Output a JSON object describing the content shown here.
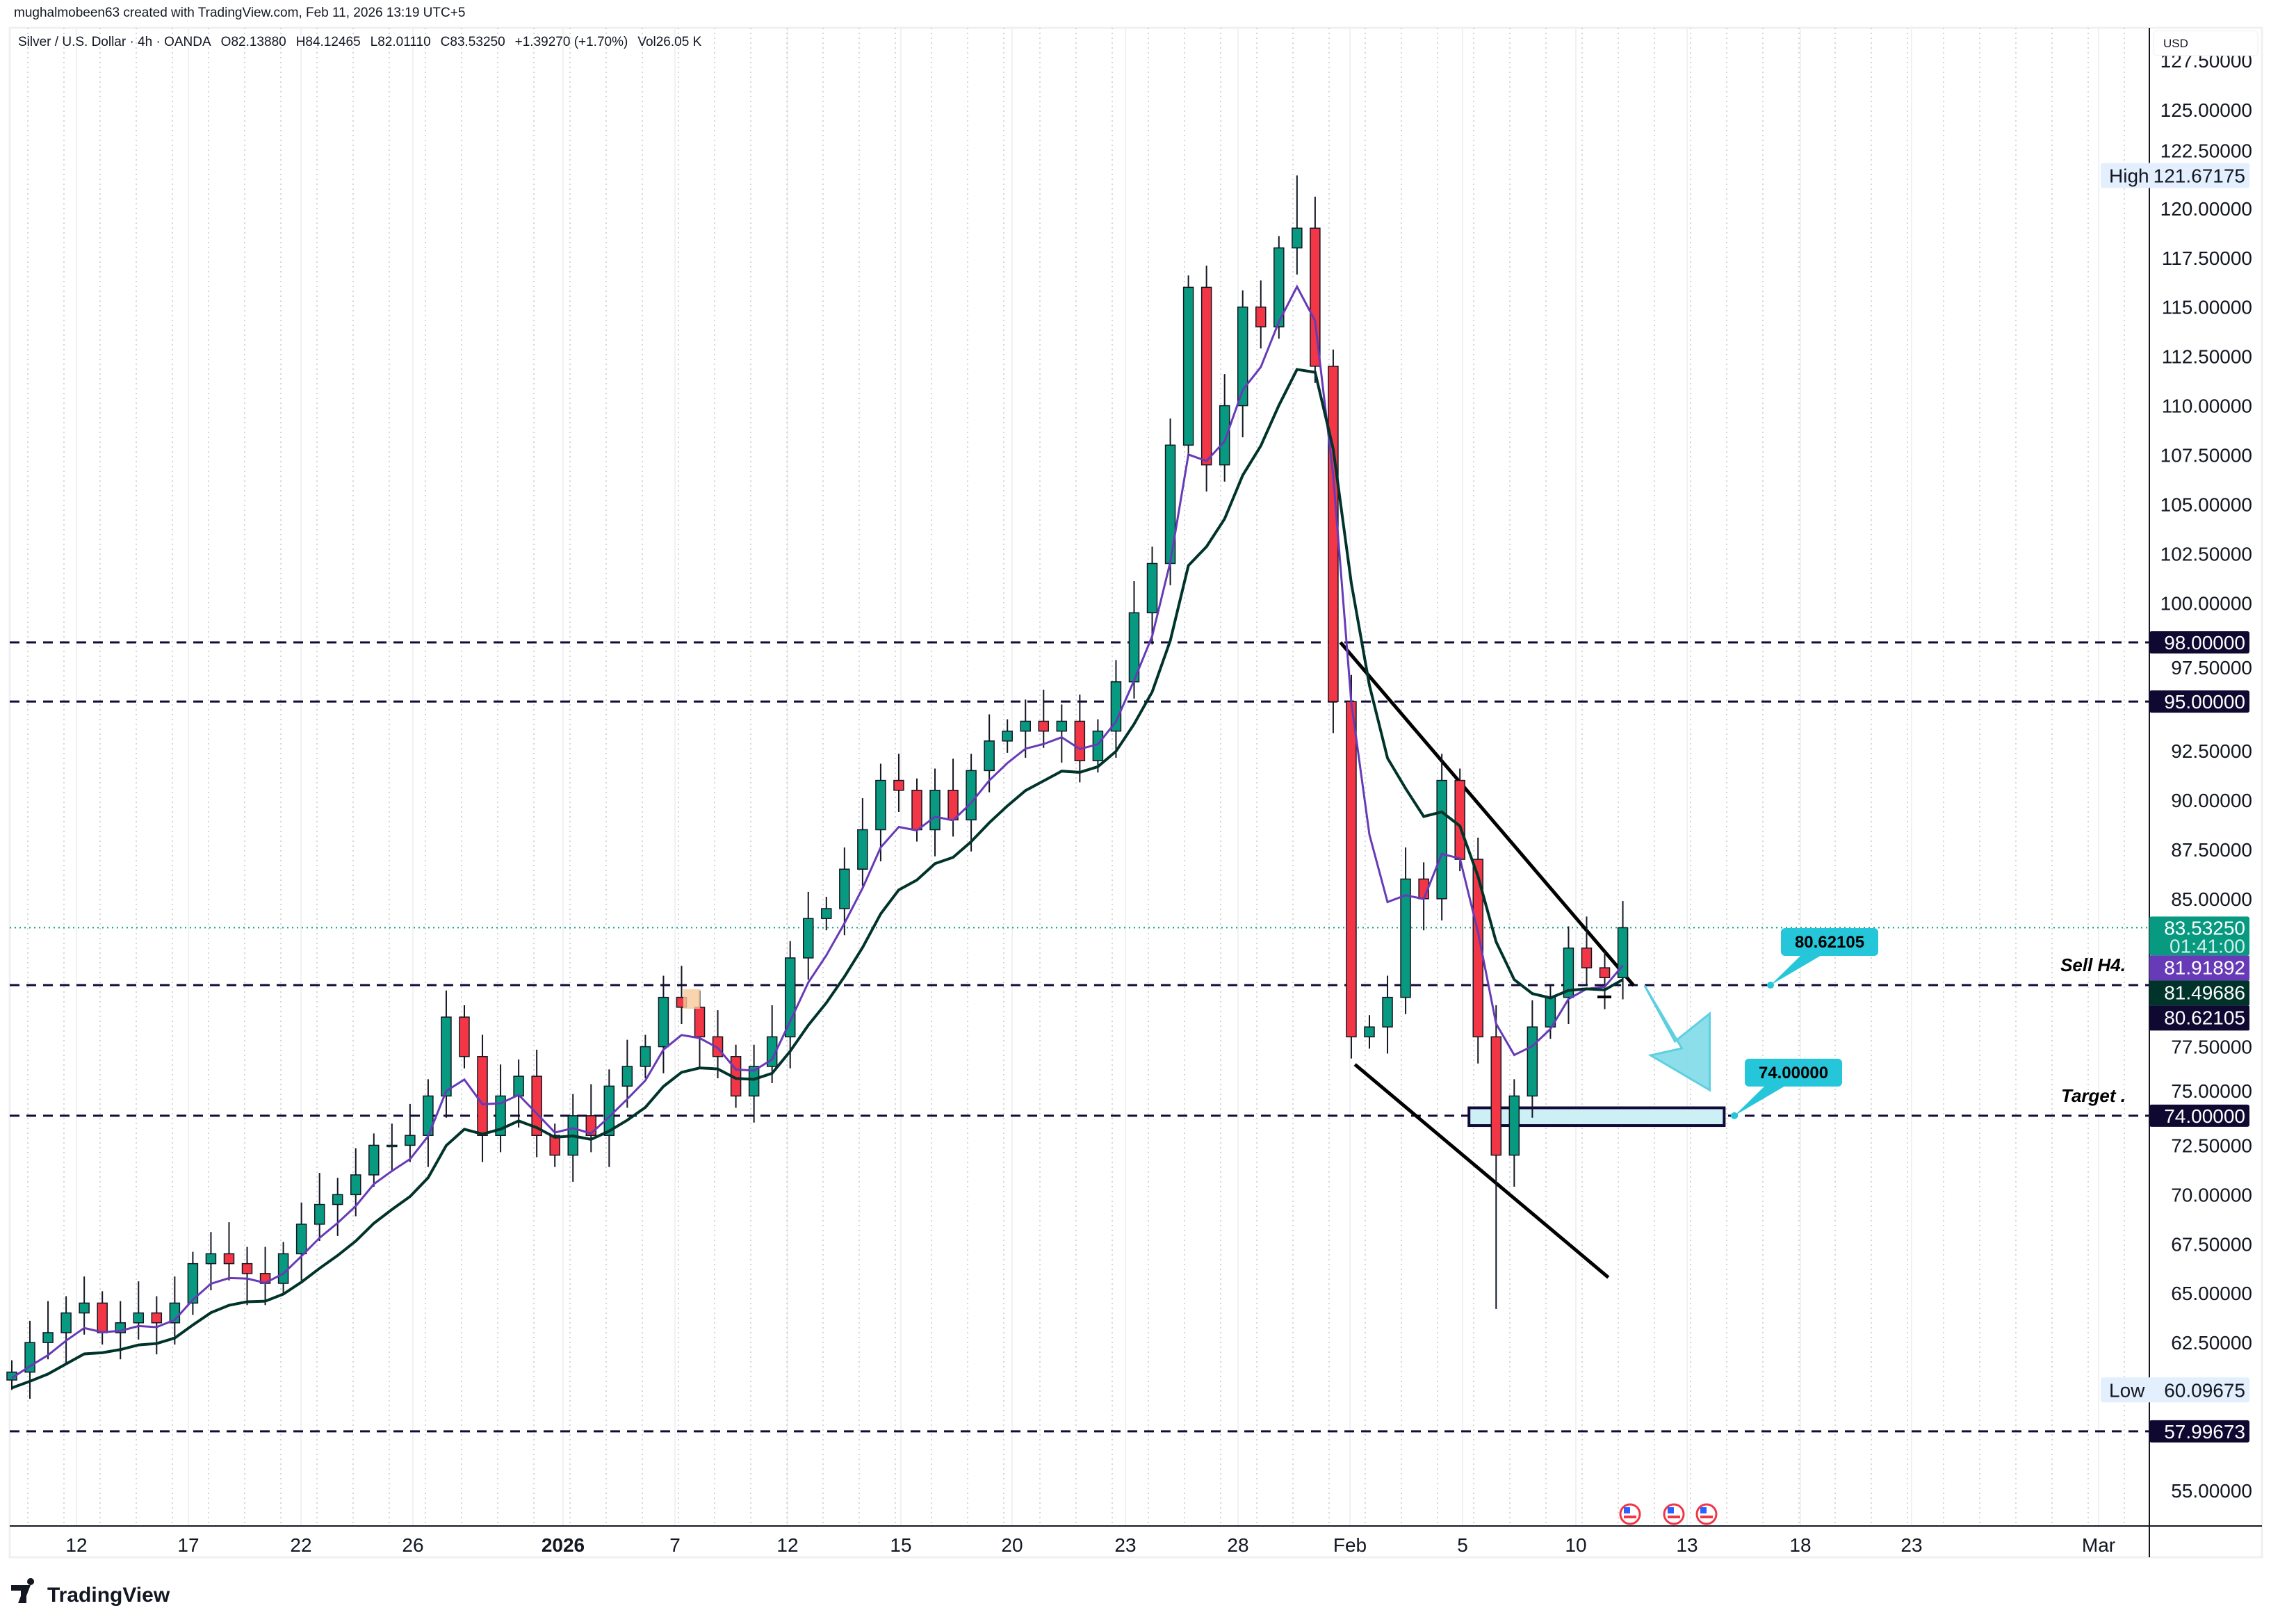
{
  "attribution": "mughalmobeen63 created with TradingView.com, Feb 11, 2026 13:19 UTC+5",
  "header": {
    "symbol": "Silver / U.S. Dollar · 4h · OANDA",
    "open": "O82.13880",
    "high": "H84.12465",
    "low": "L82.01110",
    "close": "C83.53250",
    "change": "+1.39270 (+1.70%)",
    "volume": "Vol26.05 K"
  },
  "brand": {
    "logo_text": "TradingView"
  },
  "colors": {
    "up": "#089981",
    "down": "#f23645",
    "ma_fast": "#7e3fc6",
    "ma_slow": "#0c2a22",
    "hline": "#120a3a",
    "callout": "#26c6da",
    "current_price": "#089981"
  },
  "chart_data": {
    "type": "candlestick",
    "currency": "USD",
    "ylim": [
      53,
      128
    ],
    "y_ticks": [
      "127.50000",
      "125.00000",
      "122.50000",
      "120.00000",
      "117.50000",
      "115.00000",
      "112.50000",
      "110.00000",
      "107.50000",
      "105.00000",
      "102.50000",
      "100.00000",
      "97.50000",
      "92.50000",
      "90.00000",
      "87.50000",
      "85.00000",
      "77.50000",
      "75.00000",
      "72.50000",
      "70.00000",
      "67.50000",
      "65.00000",
      "62.50000",
      "55.00000"
    ],
    "x_ticks": [
      {
        "label": "12"
      },
      {
        "label": "17"
      },
      {
        "label": "22"
      },
      {
        "label": "26"
      },
      {
        "label": "2026",
        "bold": true
      },
      {
        "label": "7"
      },
      {
        "label": "12"
      },
      {
        "label": "15"
      },
      {
        "label": "20"
      },
      {
        "label": "23"
      },
      {
        "label": "28"
      },
      {
        "label": "Feb"
      },
      {
        "label": "5"
      },
      {
        "label": "10"
      },
      {
        "label": "13"
      },
      {
        "label": "18"
      },
      {
        "label": "23"
      },
      {
        "label": "Mar"
      }
    ],
    "closes": [
      61,
      62.5,
      63,
      64,
      64.5,
      63,
      63.5,
      64,
      63.5,
      64.5,
      66.5,
      67,
      66.5,
      66,
      65.5,
      67,
      68.5,
      69.5,
      70,
      71,
      72.5,
      72.5,
      73,
      75,
      79,
      77,
      73,
      75,
      76,
      73,
      72,
      74,
      73,
      75.5,
      76.5,
      77.5,
      80,
      79.5,
      78,
      77,
      75,
      76.5,
      78,
      82,
      84,
      84.5,
      86.5,
      88.5,
      91,
      90.5,
      88.5,
      90.5,
      89,
      91.5,
      93,
      93.5,
      94,
      93.5,
      94,
      92,
      93.5,
      96,
      99.5,
      102,
      108,
      116,
      107,
      110,
      115,
      114,
      118,
      119,
      112,
      95,
      78,
      78.5,
      80,
      86,
      85,
      91,
      87,
      78,
      72,
      75,
      78.5,
      80,
      82.5,
      81.5,
      81,
      83.5325
    ],
    "first_open": 60.6,
    "session_high": {
      "label": "High",
      "value": "121.67175"
    },
    "session_low": {
      "label": "Low",
      "value": "60.09675"
    },
    "current_price": {
      "value": "83.53250",
      "countdown": "01:41:00"
    },
    "moving_averages": [
      {
        "last": "81.91892",
        "color": "#673ab7"
      },
      {
        "last": "81.49686",
        "color": "#00332a"
      }
    ],
    "horizontal_lines": [
      {
        "price": 98,
        "label": "98.00000"
      },
      {
        "price": 95,
        "label": "95.00000"
      },
      {
        "price": 80.62105,
        "label": "80.62105",
        "note": "Sell H4."
      },
      {
        "price": 74,
        "label": "74.00000",
        "note": "Target ."
      },
      {
        "price": 57.99673,
        "label": "57.99673"
      }
    ],
    "trendlines": [
      {
        "from": [
          73.4,
          98
        ],
        "to": [
          89.6,
          80.6
        ]
      },
      {
        "from": [
          74.2,
          76.6
        ],
        "to": [
          88.2,
          65.8
        ]
      }
    ],
    "target_zone": {
      "from": [
        80.5,
        74.4
      ],
      "to": [
        94.6,
        73.5
      ]
    },
    "arrow": {
      "from": [
        90.2,
        80.6
      ],
      "to": [
        93.8,
        75.3
      ]
    },
    "callouts": [
      {
        "text": "80.62105",
        "price": 80.62105
      },
      {
        "text": "74.00000",
        "price": 74
      }
    ],
    "event_markers": [
      "us-flag-icon",
      "us-flag-icon",
      "us-flag-icon"
    ]
  }
}
